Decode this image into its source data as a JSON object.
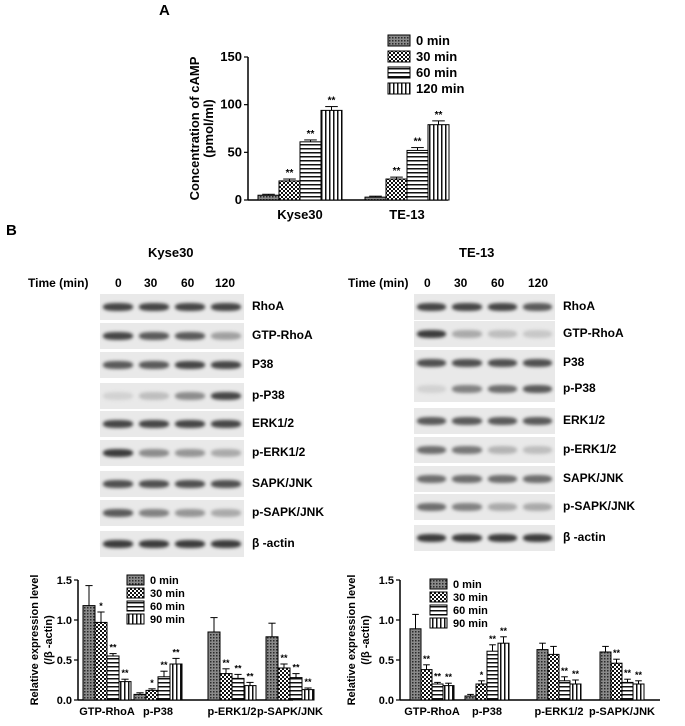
{
  "panels": {
    "a": "A",
    "b": "B"
  },
  "blots": [
    {
      "title": "Kyse30",
      "time_header": "Time (min)",
      "times": [
        "0",
        "30",
        "60",
        "120"
      ],
      "rows": [
        {
          "label": "RhoA",
          "intensity": [
            0.8,
            0.8,
            0.8,
            0.8
          ]
        },
        {
          "label": "GTP-RhoA",
          "intensity": [
            0.8,
            0.7,
            0.7,
            0.35
          ]
        },
        {
          "label": "P38",
          "intensity": [
            0.7,
            0.7,
            0.8,
            0.8
          ]
        },
        {
          "label": "p-P38",
          "intensity": [
            0.1,
            0.2,
            0.45,
            0.8
          ]
        },
        {
          "label": "ERK1/2",
          "intensity": [
            0.8,
            0.8,
            0.8,
            0.8
          ]
        },
        {
          "label": "p-ERK1/2",
          "intensity": [
            0.85,
            0.45,
            0.4,
            0.3
          ]
        },
        {
          "label": "SAPK/JNK",
          "intensity": [
            0.75,
            0.75,
            0.75,
            0.75
          ]
        },
        {
          "label": "p-SAPK/JNK",
          "intensity": [
            0.7,
            0.5,
            0.4,
            0.3
          ]
        },
        {
          "label": "β -actin",
          "intensity": [
            0.85,
            0.85,
            0.85,
            0.85
          ]
        }
      ]
    },
    {
      "title": "TE-13",
      "time_header": "Time (min)",
      "times": [
        "0",
        "30",
        "60",
        "120"
      ],
      "rows": [
        {
          "label": "RhoA",
          "intensity": [
            0.8,
            0.8,
            0.8,
            0.7
          ]
        },
        {
          "label": "GTP-RhoA",
          "intensity": [
            0.85,
            0.3,
            0.2,
            0.15
          ]
        },
        {
          "label": "P38",
          "intensity": [
            0.75,
            0.75,
            0.75,
            0.75
          ]
        },
        {
          "label": "p-P38",
          "intensity": [
            0.1,
            0.5,
            0.6,
            0.7
          ]
        },
        {
          "label": "ERK1/2",
          "intensity": [
            0.7,
            0.7,
            0.7,
            0.7
          ]
        },
        {
          "label": "p-ERK1/2",
          "intensity": [
            0.6,
            0.55,
            0.25,
            0.2
          ]
        },
        {
          "label": "SAPK/JNK",
          "intensity": [
            0.6,
            0.6,
            0.6,
            0.6
          ]
        },
        {
          "label": "p-SAPK/JNK",
          "intensity": [
            0.6,
            0.5,
            0.3,
            0.3
          ]
        },
        {
          "label": "β -actin",
          "intensity": [
            0.85,
            0.85,
            0.85,
            0.85
          ]
        }
      ]
    }
  ],
  "chart_data": [
    {
      "type": "bar",
      "ylabel": [
        "Concentration of cAMP",
        "(pmol/ml)"
      ],
      "categories": [
        "Kyse30",
        "TE-13"
      ],
      "ylim": [
        0,
        150
      ],
      "yticks": [
        0,
        50,
        100,
        150
      ],
      "legend_position": "top-right",
      "series": [
        {
          "name": "0 min",
          "values": [
            5,
            3
          ],
          "errors": [
            1,
            1
          ],
          "sig": [
            "",
            ""
          ]
        },
        {
          "name": "30 min",
          "values": [
            20,
            22
          ],
          "errors": [
            2,
            2
          ],
          "sig": [
            "**",
            "**"
          ]
        },
        {
          "name": "60 min",
          "values": [
            61,
            52
          ],
          "errors": [
            2,
            3
          ],
          "sig": [
            "**",
            "**"
          ]
        },
        {
          "name": "120 min",
          "values": [
            94,
            79
          ],
          "errors": [
            4,
            4
          ],
          "sig": [
            "**",
            "**"
          ]
        }
      ]
    },
    {
      "type": "bar",
      "ylabel": [
        "Relative expression level",
        "(/β -actin)"
      ],
      "categories": [
        "GTP-RhoA",
        "p-P38",
        "p-ERK1/2",
        "p-SAPK/JNK"
      ],
      "ylim": [
        0,
        1.5
      ],
      "yticks": [
        "0.0",
        "0.5",
        "1.0",
        "1.5"
      ],
      "legend_position": "top-right",
      "series": [
        {
          "name": "0 min",
          "values": [
            1.18,
            0.07,
            0.85,
            0.79
          ],
          "errors": [
            0.25,
            0.02,
            0.18,
            0.17
          ],
          "sig": [
            "",
            "",
            "",
            ""
          ]
        },
        {
          "name": "30 min",
          "values": [
            0.97,
            0.12,
            0.33,
            0.4
          ],
          "errors": [
            0.13,
            0.02,
            0.06,
            0.05
          ],
          "sig": [
            "*",
            "*",
            "**",
            "**"
          ]
        },
        {
          "name": "60 min",
          "values": [
            0.55,
            0.29,
            0.27,
            0.28
          ],
          "errors": [
            0.03,
            0.07,
            0.05,
            0.05
          ],
          "sig": [
            "**",
            "**",
            "**",
            "**"
          ]
        },
        {
          "name": "90 min",
          "values": [
            0.23,
            0.45,
            0.18,
            0.13
          ],
          "errors": [
            0.03,
            0.07,
            0.04,
            0.02
          ],
          "sig": [
            "**",
            "**",
            "**",
            "**"
          ]
        }
      ]
    },
    {
      "type": "bar",
      "ylabel": [
        "Relative expression level",
        "(/β -actin)"
      ],
      "categories": [
        "GTP-RhoA",
        "p-P38",
        "p-ERK1/2",
        "p-SAPK/JNK"
      ],
      "ylim": [
        0,
        1.5
      ],
      "yticks": [
        "0.0",
        "0.5",
        "1.0",
        "1.5"
      ],
      "legend_position": "top-right",
      "series": [
        {
          "name": "0 min",
          "values": [
            0.89,
            0.05,
            0.63,
            0.6
          ],
          "errors": [
            0.18,
            0.02,
            0.08,
            0.07
          ],
          "sig": [
            "",
            "",
            "",
            ""
          ]
        },
        {
          "name": "30 min",
          "values": [
            0.38,
            0.2,
            0.57,
            0.46
          ],
          "errors": [
            0.06,
            0.04,
            0.1,
            0.05
          ],
          "sig": [
            "**",
            "*",
            "",
            "**"
          ]
        },
        {
          "name": "60 min",
          "values": [
            0.2,
            0.61,
            0.24,
            0.22
          ],
          "errors": [
            0.02,
            0.08,
            0.05,
            0.04
          ],
          "sig": [
            "**",
            "**",
            "**",
            "**"
          ]
        },
        {
          "name": "90 min",
          "values": [
            0.18,
            0.71,
            0.2,
            0.2
          ],
          "errors": [
            0.03,
            0.08,
            0.05,
            0.04
          ],
          "sig": [
            "**",
            "**",
            "**",
            "**"
          ]
        }
      ]
    }
  ]
}
